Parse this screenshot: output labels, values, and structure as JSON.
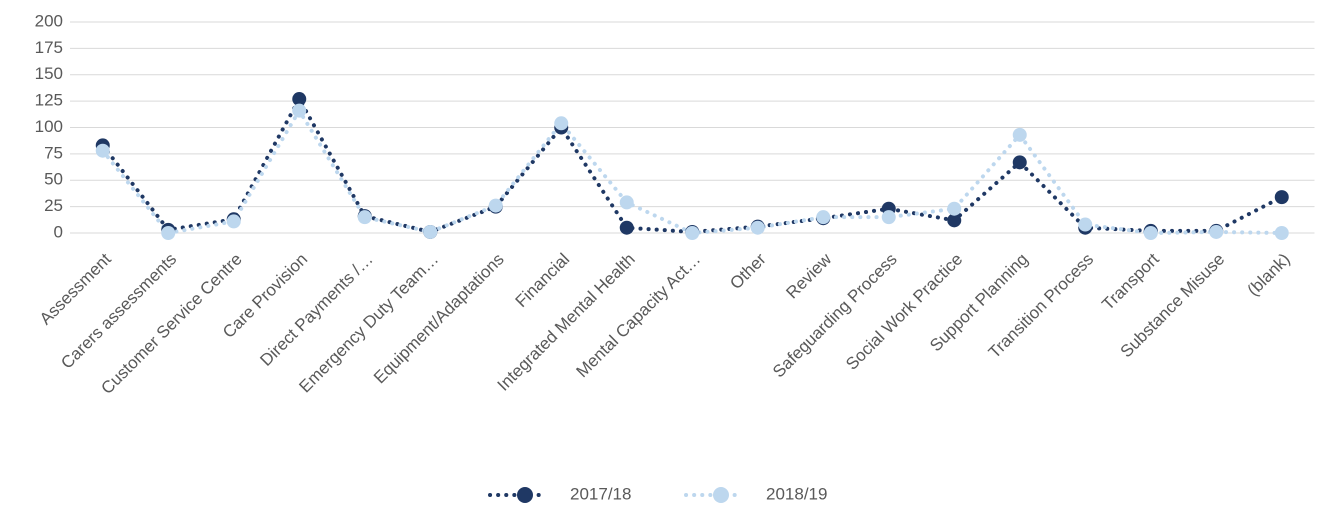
{
  "chart_data": {
    "type": "line",
    "categories": [
      "Assessment",
      "Carers assessments",
      "Customer Service Centre",
      "Care Provision",
      "Direct Payments /…",
      "Emergency Duty Team…",
      "Equipment/Adaptations",
      "Financial",
      "Integrated Mental Health",
      "Mental Capacity Act…",
      "Other",
      "Review",
      "Safeguarding Process",
      "Social Work Practice",
      "Support Planning",
      "Transition Process",
      "Transport",
      "Substance Misuse",
      "(blank)"
    ],
    "series": [
      {
        "name": "2017/18",
        "color": "#1f3864",
        "values": [
          83,
          3,
          13,
          127,
          16,
          1,
          25,
          100,
          5,
          1,
          6,
          14,
          23,
          12,
          67,
          5,
          2,
          2,
          34
        ]
      },
      {
        "name": "2018/19",
        "color": "#bdd7ee",
        "values": [
          78,
          0,
          11,
          116,
          15,
          1,
          26,
          104,
          29,
          0,
          5,
          15,
          15,
          23,
          93,
          8,
          0,
          1,
          0
        ]
      }
    ],
    "ylim": [
      0,
      200
    ],
    "yticks": [
      0,
      25,
      50,
      75,
      100,
      125,
      150,
      175,
      200
    ],
    "grid": true,
    "legend": "bottom"
  }
}
